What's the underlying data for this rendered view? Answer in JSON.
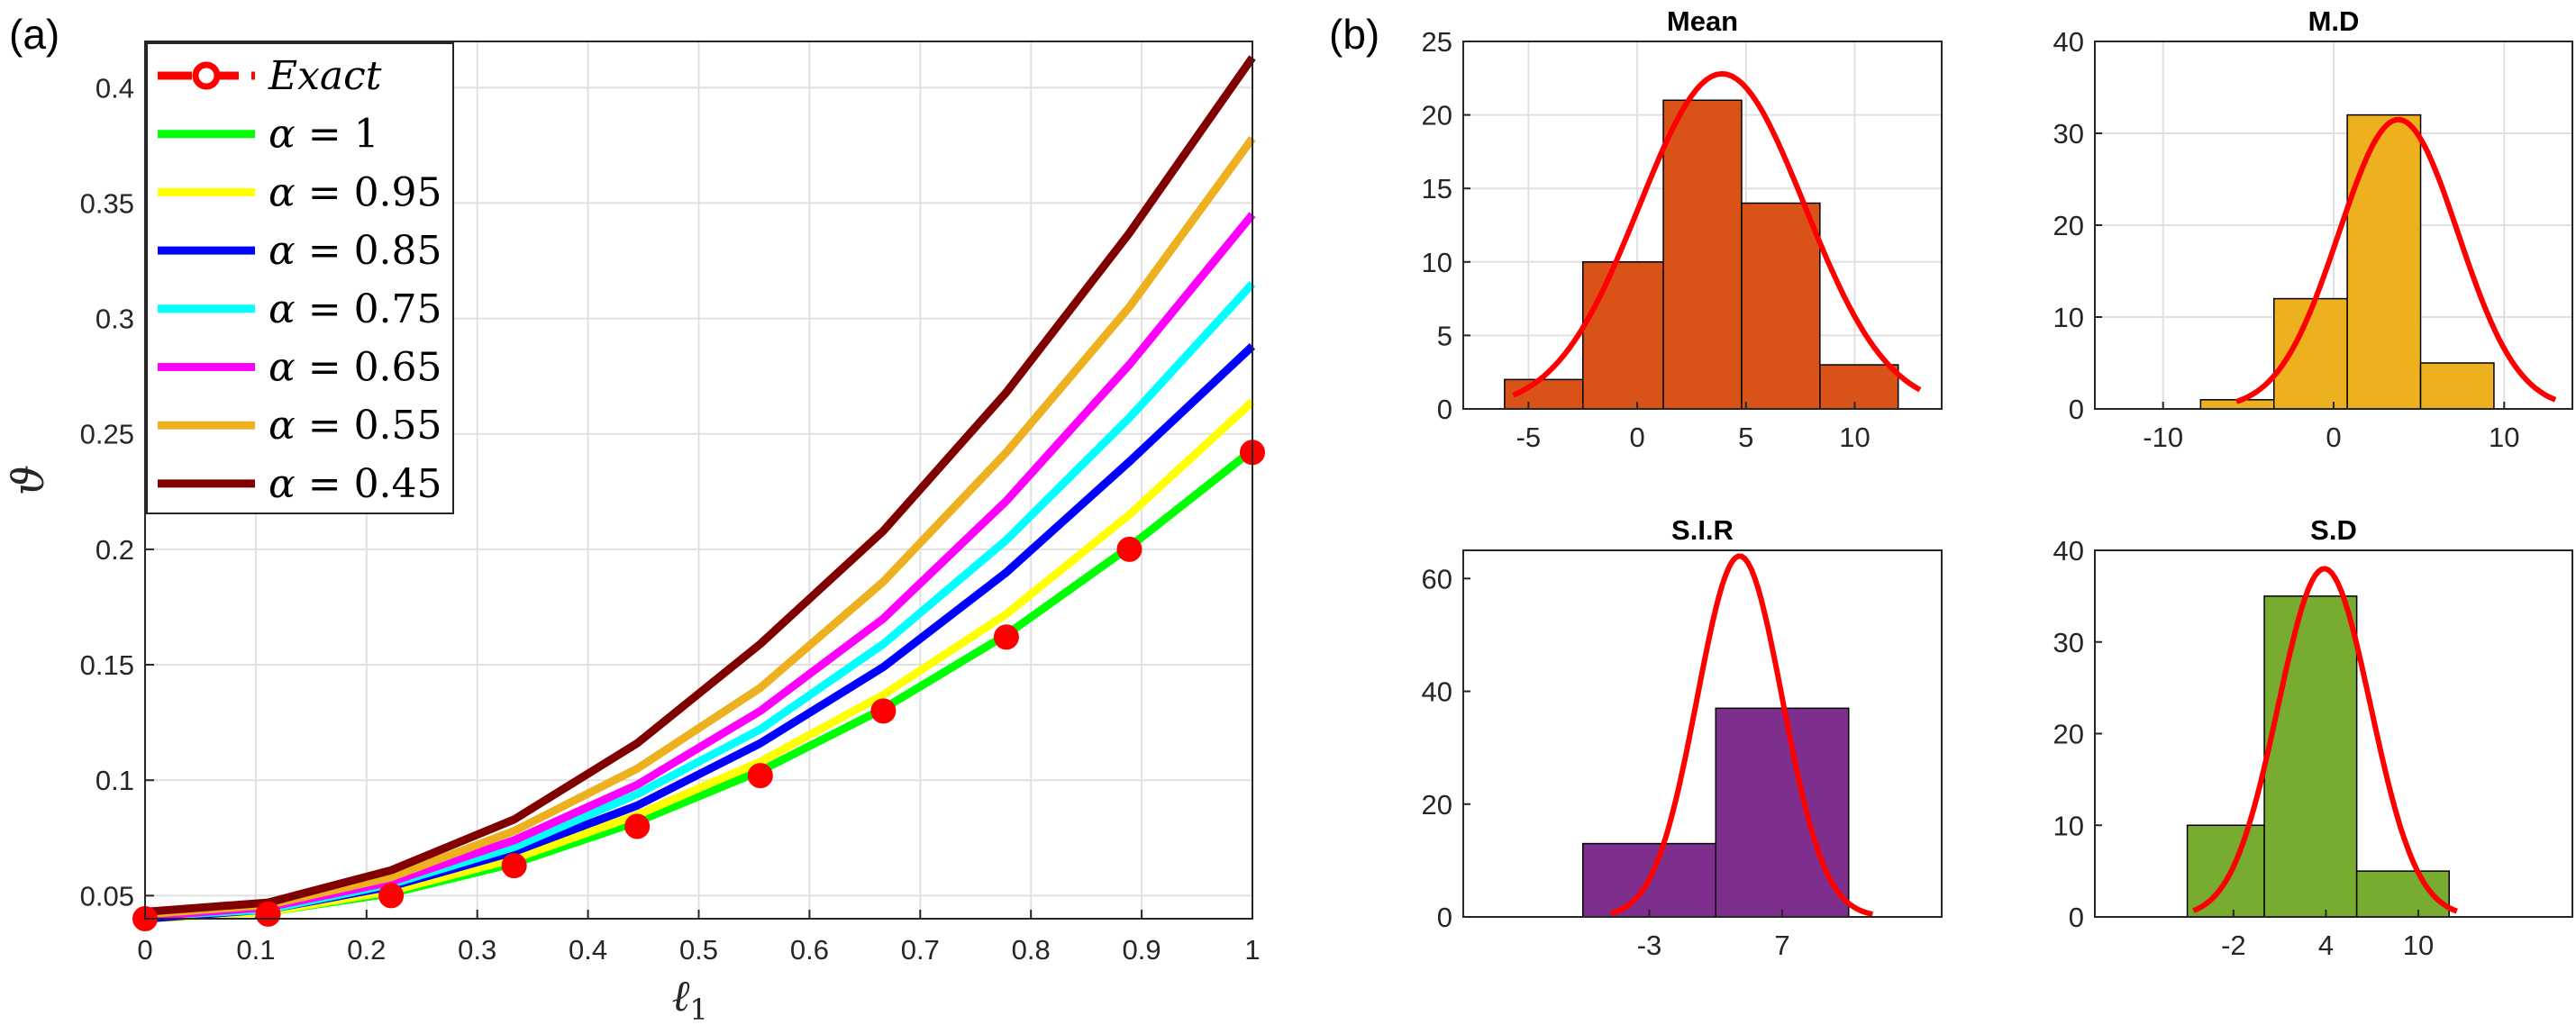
{
  "panels": {
    "a_label": "(a)",
    "b_label": "(b)"
  },
  "chart_data": [
    {
      "type": "line",
      "panel": "(a)",
      "xlabel": "ℓ",
      "xlabel_subscript": "1",
      "ylabel": "ϑ",
      "xlim": [
        0,
        1
      ],
      "ylim": [
        0.04,
        0.42
      ],
      "x_ticks": [
        "0",
        "0.1",
        "0.2",
        "0.3",
        "0.4",
        "0.5",
        "0.6",
        "0.7",
        "0.8",
        "0.9",
        "1"
      ],
      "y_ticks": [
        "0.05",
        "0.1",
        "0.15",
        "0.2",
        "0.25",
        "0.3",
        "0.35",
        "0.4"
      ],
      "grid": true,
      "legend_position": "top-left",
      "x": [
        0,
        0.1111,
        0.2222,
        0.3333,
        0.4444,
        0.5556,
        0.6667,
        0.7778,
        0.8889,
        1.0
      ],
      "exact": {
        "legend_var": "Exact",
        "color": "#ff0000",
        "values": [
          0.04,
          0.042,
          0.05,
          0.063,
          0.08,
          0.102,
          0.13,
          0.162,
          0.2,
          0.242
        ]
      },
      "series": [
        {
          "symbol": "α",
          "eq": " = ",
          "alpha": "1",
          "color": "#00ff00",
          "values": [
            0.04,
            0.043,
            0.051,
            0.064,
            0.082,
            0.104,
            0.131,
            0.163,
            0.201,
            0.243
          ]
        },
        {
          "symbol": "α",
          "eq": " = ",
          "alpha": "0.95",
          "color": "#ffff00",
          "values": [
            0.04,
            0.043,
            0.052,
            0.066,
            0.085,
            0.108,
            0.137,
            0.172,
            0.215,
            0.264
          ]
        },
        {
          "symbol": "α",
          "eq": " = ",
          "alpha": "0.85",
          "color": "#0000ff",
          "values": [
            0.04,
            0.044,
            0.054,
            0.069,
            0.089,
            0.116,
            0.149,
            0.19,
            0.238,
            0.288
          ]
        },
        {
          "symbol": "α",
          "eq": " = ",
          "alpha": "0.75",
          "color": "#00ffff",
          "values": [
            0.041,
            0.044,
            0.055,
            0.071,
            0.094,
            0.122,
            0.159,
            0.204,
            0.257,
            0.315
          ]
        },
        {
          "symbol": "α",
          "eq": " = ",
          "alpha": "0.65",
          "color": "#ff00ff",
          "values": [
            0.041,
            0.045,
            0.056,
            0.074,
            0.098,
            0.13,
            0.17,
            0.221,
            0.28,
            0.345
          ]
        },
        {
          "symbol": "α",
          "eq": " = ",
          "alpha": "0.55",
          "color": "#edb120",
          "values": [
            0.042,
            0.046,
            0.058,
            0.078,
            0.105,
            0.14,
            0.186,
            0.242,
            0.305,
            0.378
          ]
        },
        {
          "symbol": "α",
          "eq": " = ",
          "alpha": "0.45",
          "color": "#800000",
          "values": [
            0.043,
            0.047,
            0.061,
            0.083,
            0.116,
            0.159,
            0.208,
            0.268,
            0.337,
            0.413
          ]
        }
      ]
    },
    {
      "type": "histogram",
      "panel": "(b)",
      "title": "Mean",
      "bar_color": "#d95319",
      "fit_color": "#ff0000",
      "bin_edges": [
        -6.1,
        -2.5,
        1.2,
        4.8,
        8.4,
        12.0
      ],
      "counts": [
        2,
        10,
        21,
        14,
        3
      ],
      "fit": {
        "mean": 3.9,
        "sd": 3.8,
        "peak": 22.8,
        "range": [
          -5.7,
          13.0
        ]
      },
      "xlim": [
        -8,
        14
      ],
      "ylim": [
        0,
        25
      ],
      "x_ticks": [
        -5,
        0,
        5,
        10
      ],
      "x_tick_labels": [
        "-5",
        "0",
        "5",
        "10"
      ],
      "y_ticks": [
        0,
        5,
        10,
        15,
        20,
        25
      ],
      "y_tick_labels": [
        "0",
        "5",
        "10",
        "15",
        "20",
        "25"
      ],
      "grid": true
    },
    {
      "type": "histogram",
      "panel": "(b)",
      "title": "M.D",
      "bar_color": "#edb120",
      "fit_color": "#ff0000",
      "bin_edges": [
        -7.8,
        -3.5,
        0.8,
        5.1,
        9.4,
        13.7
      ],
      "counts": [
        1,
        12,
        32,
        5,
        0
      ],
      "fit": {
        "mean": 3.8,
        "sd": 3.5,
        "peak": 31.5,
        "range": [
          -5.7,
          13.0
        ]
      },
      "xlim": [
        -14,
        14
      ],
      "ylim": [
        0,
        40
      ],
      "x_ticks": [
        -10,
        0,
        10
      ],
      "x_tick_labels": [
        "-10",
        "0",
        "10"
      ],
      "y_ticks": [
        0,
        10,
        20,
        30,
        40
      ],
      "y_tick_labels": [
        "0",
        "10",
        "20",
        "30",
        "40"
      ],
      "grid": true
    },
    {
      "type": "histogram",
      "panel": "(b)",
      "title": "S.I.R",
      "bar_color": "#7e2f8e",
      "fit_color": "#ff0000",
      "bin_edges": [
        -8.0,
        2.0,
        12.0
      ],
      "counts": [
        13,
        37
      ],
      "fit": {
        "mean": 3.8,
        "sd": 3.2,
        "peak": 64,
        "range": [
          -5.9,
          13.8
        ]
      },
      "xlim": [
        -17,
        19
      ],
      "ylim": [
        0,
        65
      ],
      "x_ticks": [
        -3,
        7
      ],
      "x_tick_labels": [
        "-3",
        "7"
      ],
      "y_ticks": [
        0,
        20,
        40,
        60
      ],
      "y_tick_labels": [
        "0",
        "20",
        "40",
        "60"
      ],
      "grid": false
    },
    {
      "type": "histogram",
      "panel": "(b)",
      "title": "S.D",
      "bar_color": "#77ac30",
      "fit_color": "#ff0000",
      "bin_edges": [
        -5.0,
        0.0,
        6.0,
        12.0
      ],
      "counts": [
        10,
        35,
        5
      ],
      "fit": {
        "mean": 3.9,
        "sd": 3.0,
        "peak": 38,
        "range": [
          -4.6,
          12.5
        ]
      },
      "xlim": [
        -11,
        20
      ],
      "ylim": [
        0,
        40
      ],
      "x_ticks": [
        -2,
        4,
        10
      ],
      "x_tick_labels": [
        "-2",
        "4",
        "10"
      ],
      "y_ticks": [
        0,
        10,
        20,
        30,
        40
      ],
      "y_tick_labels": [
        "0",
        "10",
        "20",
        "30",
        "40"
      ],
      "grid": false
    }
  ]
}
